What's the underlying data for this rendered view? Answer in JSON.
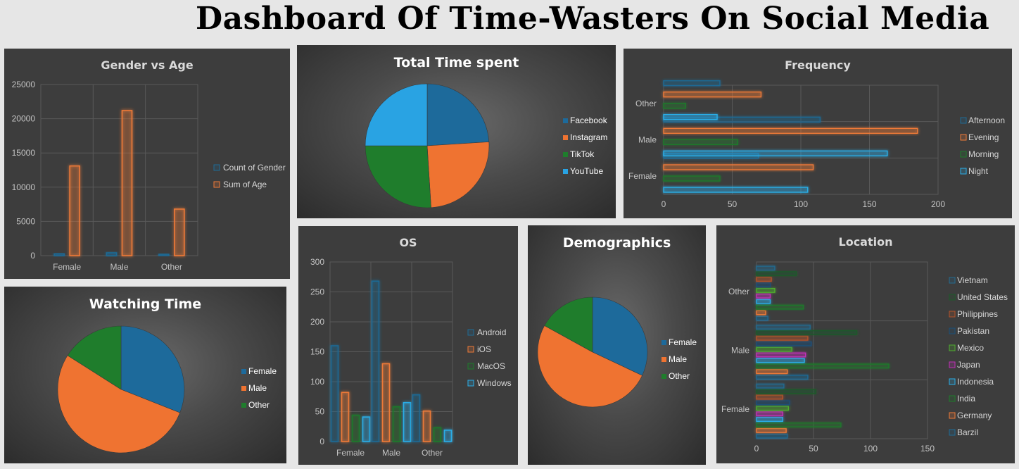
{
  "dashboard_title": "Dashboard Of Time-Wasters On Social Media",
  "chart_data": [
    {
      "id": "gender_age",
      "type": "bar",
      "title": "Gender vs Age",
      "categories": [
        "Female",
        "Male",
        "Other"
      ],
      "series": [
        {
          "name": "Count of Gender",
          "values": [
            250,
            410,
            200
          ],
          "color": "#1e6a95"
        },
        {
          "name": "Sum of Age",
          "values": [
            13100,
            21200,
            6800
          ],
          "color": "#ee7a38"
        }
      ],
      "ylim": [
        0,
        25000
      ],
      "yticks": [
        "0",
        "5000",
        "10000",
        "15000",
        "20000",
        "25000"
      ],
      "legend": "right",
      "grid": true
    },
    {
      "id": "total_time",
      "type": "pie",
      "title": "Total Time spent",
      "labels": [
        "Facebook",
        "Instagram",
        "TikTok",
        "YouTube"
      ],
      "values": [
        24,
        25,
        26,
        25
      ],
      "colors": [
        "#1d6a9b",
        "#ef7331",
        "#1f7d2c",
        "#29a3e3"
      ],
      "legend": "right"
    },
    {
      "id": "frequency",
      "type": "bar",
      "orientation": "horizontal",
      "title": "Frequency",
      "categories": [
        "Female",
        "Male",
        "Other"
      ],
      "series": [
        {
          "name": "Night",
          "values": [
            105,
            163,
            39
          ],
          "color": "#2aaee8"
        },
        {
          "name": "Morning",
          "values": [
            41,
            54,
            16
          ],
          "color": "#1f7a2c"
        },
        {
          "name": "Evening",
          "values": [
            109,
            185,
            71
          ],
          "color": "#ee7a38"
        },
        {
          "name": "Afternoon",
          "values": [
            69,
            114,
            41
          ],
          "color": "#1e6a95"
        }
      ],
      "xlim": [
        0,
        200
      ],
      "xticks": [
        "0",
        "50",
        "100",
        "150",
        "200"
      ],
      "legend": "right",
      "grid": true
    },
    {
      "id": "os",
      "type": "bar",
      "title": "OS",
      "categories": [
        "Female",
        "Male",
        "Other"
      ],
      "series": [
        {
          "name": "Android",
          "values": [
            160,
            268,
            78
          ],
          "color": "#1e6a95"
        },
        {
          "name": "iOS",
          "values": [
            82,
            130,
            51
          ],
          "color": "#ee7a38"
        },
        {
          "name": "MacOS",
          "values": [
            44,
            58,
            23
          ],
          "color": "#1f7a2c"
        },
        {
          "name": "Windows",
          "values": [
            41,
            65,
            19
          ],
          "color": "#2aaee8"
        }
      ],
      "ylim": [
        0,
        300
      ],
      "yticks": [
        "0",
        "50",
        "100",
        "150",
        "200",
        "250",
        "300"
      ],
      "legend": "right",
      "grid": true
    },
    {
      "id": "demographics",
      "type": "pie",
      "title": "Demographics",
      "labels": [
        "Female",
        "Male",
        "Other"
      ],
      "values": [
        32,
        51,
        17
      ],
      "colors": [
        "#1d6a9b",
        "#ef7331",
        "#1f7d2c"
      ],
      "legend": "right"
    },
    {
      "id": "watching_time",
      "type": "pie",
      "title": "Watching Time",
      "labels": [
        "Female",
        "Male",
        "Other"
      ],
      "values": [
        31,
        53,
        16
      ],
      "colors": [
        "#1d6a9b",
        "#ef7331",
        "#1f7d2c"
      ],
      "legend": "right"
    },
    {
      "id": "location",
      "type": "bar",
      "orientation": "horizontal",
      "title": "Location",
      "categories": [
        "Female",
        "Male",
        "Other"
      ],
      "series": [
        {
          "name": "Barzil",
          "values": [
            27,
            45,
            10
          ],
          "color": "#1e6a95"
        },
        {
          "name": "Germany",
          "values": [
            26,
            27,
            8
          ],
          "color": "#ee7a38"
        },
        {
          "name": "India",
          "values": [
            74,
            116,
            41
          ],
          "color": "#1f7a2c"
        },
        {
          "name": "Indonesia",
          "values": [
            23,
            42,
            12
          ],
          "color": "#2aaee8"
        },
        {
          "name": "Japan",
          "values": [
            23,
            43,
            12
          ],
          "color": "#c130b8"
        },
        {
          "name": "Mexico",
          "values": [
            28,
            31,
            16
          ],
          "color": "#4fae2e"
        },
        {
          "name": "Pakistan",
          "values": [
            29,
            48,
            12
          ],
          "color": "#1c4f78"
        },
        {
          "name": "Philippines",
          "values": [
            23,
            45,
            13
          ],
          "color": "#b4532a"
        },
        {
          "name": "United States",
          "values": [
            52,
            88,
            35
          ],
          "color": "#1d5a2a"
        },
        {
          "name": "Vietnam",
          "values": [
            24,
            47,
            16
          ],
          "color": "#246a8f"
        }
      ],
      "xlim": [
        0,
        150
      ],
      "xticks": [
        "0",
        "50",
        "100",
        "150"
      ],
      "legend": "right",
      "grid": true
    }
  ]
}
